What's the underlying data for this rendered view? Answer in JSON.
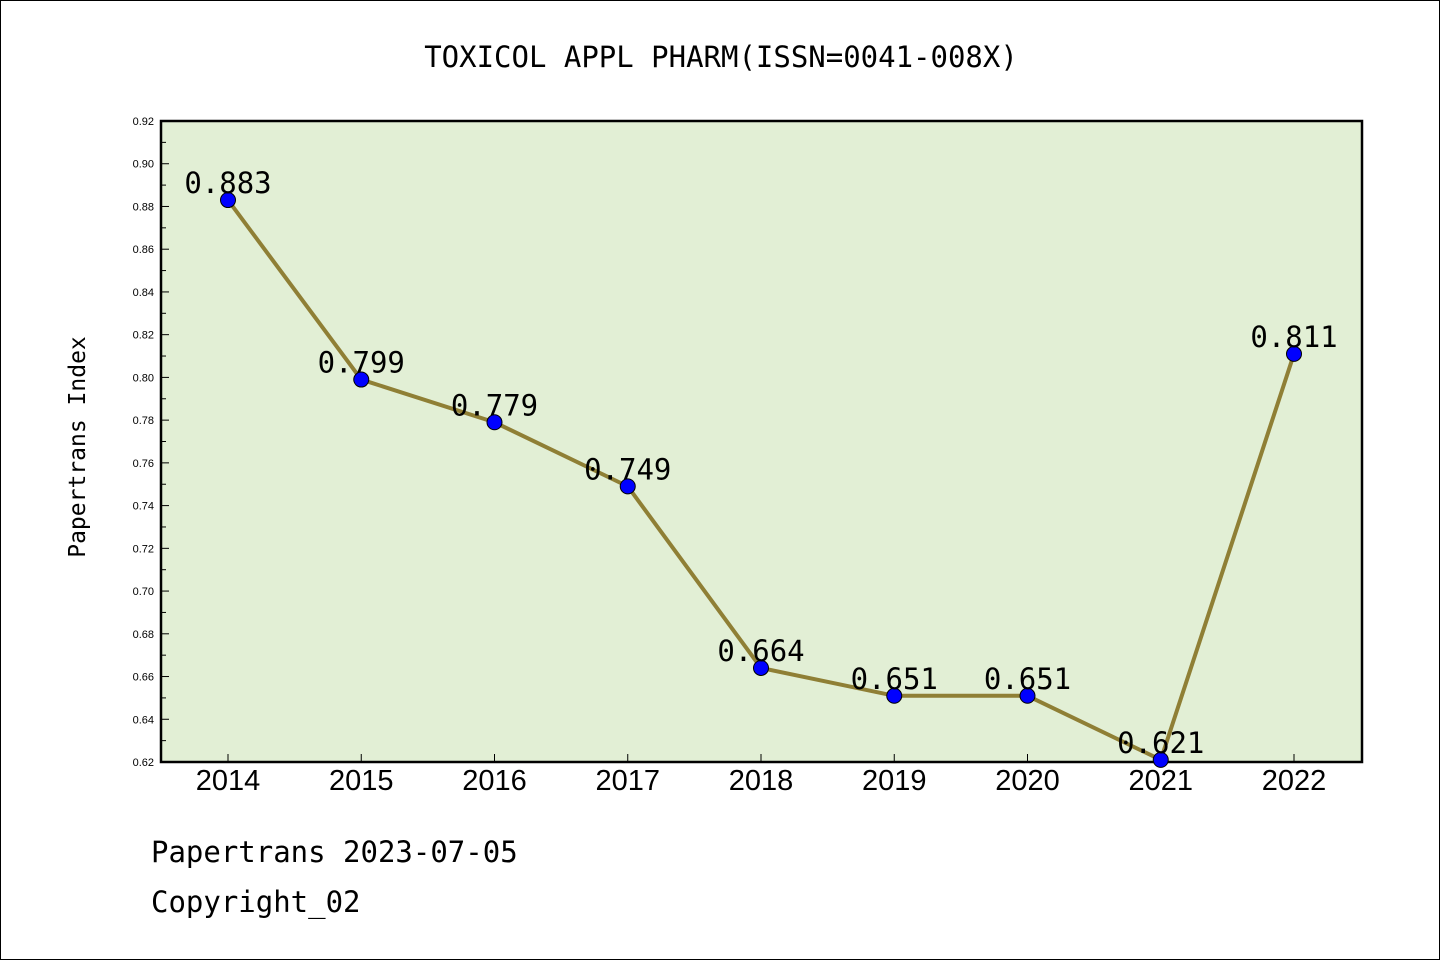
{
  "chart_data": {
    "type": "line",
    "title": "TOXICOL APPL PHARM(ISSN=0041-008X)",
    "xlabel": "",
    "ylabel": "Papertrans Index",
    "categories": [
      "2014",
      "2015",
      "2016",
      "2017",
      "2018",
      "2019",
      "2020",
      "2021",
      "2022"
    ],
    "series": [
      {
        "values": [
          0.883,
          0.799,
          0.779,
          0.749,
          0.664,
          0.651,
          0.651,
          0.621,
          0.811
        ]
      }
    ],
    "data_labels": [
      "0.883",
      "0.799",
      "0.779",
      "0.749",
      "0.664",
      "0.651",
      "0.651",
      "0.621",
      "0.811"
    ],
    "ylim": [
      0.62,
      0.92
    ],
    "yticks": [
      "0.62",
      "0.64",
      "0.66",
      "0.68",
      "0.70",
      "0.72",
      "0.74",
      "0.76",
      "0.78",
      "0.80",
      "0.82",
      "0.84",
      "0.86",
      "0.88",
      "0.90",
      "0.92"
    ],
    "grid": false,
    "legend": "none",
    "colors": {
      "plot_background": "#e2efd5",
      "line": "#8f7f35",
      "marker": "#0000ff"
    }
  },
  "footer": {
    "line1": "Papertrans 2023-07-05",
    "line2": "Copyright_02"
  }
}
